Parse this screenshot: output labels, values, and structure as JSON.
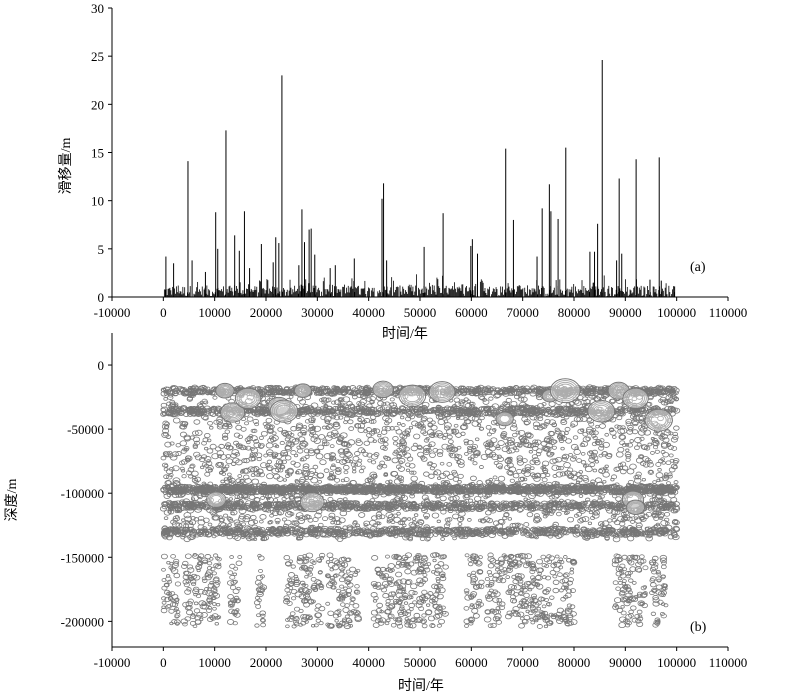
{
  "chart_data": [
    {
      "type": "bar",
      "panel_label": "(a)",
      "xlabel": "时间/年",
      "ylabel": "滑移量/m",
      "xlim": [
        -10000,
        110000
      ],
      "ylim": [
        0,
        30
      ],
      "xticks": [
        "-10000",
        "0",
        "10000",
        "20000",
        "30000",
        "40000",
        "50000",
        "60000",
        "70000",
        "80000",
        "90000",
        "100000",
        "110000"
      ],
      "yticks": [
        "0",
        "5",
        "10",
        "15",
        "20",
        "25",
        "30"
      ],
      "color": "#000000",
      "baseline_max": 1.2,
      "events": [
        {
          "x": 500,
          "y": 4.2
        },
        {
          "x": 2000,
          "y": 3.5
        },
        {
          "x": 4800,
          "y": 14.1
        },
        {
          "x": 5600,
          "y": 3.8
        },
        {
          "x": 8200,
          "y": 2.6
        },
        {
          "x": 10200,
          "y": 8.8
        },
        {
          "x": 10600,
          "y": 5.0
        },
        {
          "x": 12200,
          "y": 17.3
        },
        {
          "x": 13900,
          "y": 6.4
        },
        {
          "x": 14800,
          "y": 4.8
        },
        {
          "x": 15800,
          "y": 8.9
        },
        {
          "x": 16800,
          "y": 3.0
        },
        {
          "x": 19100,
          "y": 5.5
        },
        {
          "x": 21400,
          "y": 3.6
        },
        {
          "x": 21900,
          "y": 6.2
        },
        {
          "x": 22500,
          "y": 5.6
        },
        {
          "x": 23100,
          "y": 23.0
        },
        {
          "x": 26400,
          "y": 3.3
        },
        {
          "x": 27000,
          "y": 9.1
        },
        {
          "x": 27500,
          "y": 5.7
        },
        {
          "x": 28400,
          "y": 7.0
        },
        {
          "x": 28800,
          "y": 7.1
        },
        {
          "x": 29500,
          "y": 4.4
        },
        {
          "x": 32500,
          "y": 3.0
        },
        {
          "x": 33500,
          "y": 3.3
        },
        {
          "x": 37200,
          "y": 4.0
        },
        {
          "x": 42600,
          "y": 10.2
        },
        {
          "x": 42900,
          "y": 11.8
        },
        {
          "x": 43500,
          "y": 3.8
        },
        {
          "x": 50800,
          "y": 5.2
        },
        {
          "x": 54500,
          "y": 8.7
        },
        {
          "x": 59900,
          "y": 5.3
        },
        {
          "x": 60200,
          "y": 6.0
        },
        {
          "x": 61200,
          "y": 4.5
        },
        {
          "x": 66700,
          "y": 15.4
        },
        {
          "x": 68200,
          "y": 8.0
        },
        {
          "x": 72800,
          "y": 4.2
        },
        {
          "x": 73800,
          "y": 9.2
        },
        {
          "x": 75200,
          "y": 11.7
        },
        {
          "x": 75500,
          "y": 8.9
        },
        {
          "x": 76900,
          "y": 8.1
        },
        {
          "x": 78400,
          "y": 15.5
        },
        {
          "x": 83100,
          "y": 4.7
        },
        {
          "x": 84000,
          "y": 4.7
        },
        {
          "x": 84600,
          "y": 7.6
        },
        {
          "x": 85500,
          "y": 24.6
        },
        {
          "x": 88300,
          "y": 3.8
        },
        {
          "x": 88800,
          "y": 12.3
        },
        {
          "x": 89300,
          "y": 4.5
        },
        {
          "x": 92100,
          "y": 14.3
        },
        {
          "x": 94800,
          "y": 1.8
        },
        {
          "x": 96600,
          "y": 14.5
        },
        {
          "x": 97000,
          "y": 1.7
        },
        {
          "x": 99600,
          "y": 1.1
        }
      ]
    },
    {
      "type": "scatter",
      "panel_label": "(b)",
      "xlabel": "时间/年",
      "ylabel": "深度/m",
      "xlim": [
        -10000,
        110000
      ],
      "ylim": [
        -220000,
        25000
      ],
      "xticks": [
        "-10000",
        "0",
        "10000",
        "20000",
        "30000",
        "40000",
        "50000",
        "60000",
        "70000",
        "80000",
        "90000",
        "100000",
        "110000"
      ],
      "yticks": [
        "0",
        "-50000",
        "-100000",
        "-150000",
        "-200000"
      ],
      "marker": "open-ellipse",
      "color": "#777777",
      "bands": [
        {
          "depth": -20000,
          "density": "high"
        },
        {
          "depth": -36000,
          "density": "high"
        },
        {
          "depth": -97000,
          "density": "very high"
        },
        {
          "depth": -110000,
          "density": "high"
        },
        {
          "depth": -130000,
          "density": "high"
        }
      ],
      "large_events": [
        {
          "x": 12000,
          "y": -20000
        },
        {
          "x": 13500,
          "y": -37000
        },
        {
          "x": 16500,
          "y": -26000
        },
        {
          "x": 22500,
          "y": -32000
        },
        {
          "x": 23500,
          "y": -36000
        },
        {
          "x": 27200,
          "y": -20000
        },
        {
          "x": 42800,
          "y": -19000
        },
        {
          "x": 48500,
          "y": -24000
        },
        {
          "x": 54300,
          "y": -21000
        },
        {
          "x": 66500,
          "y": -42000
        },
        {
          "x": 75300,
          "y": -24000
        },
        {
          "x": 78300,
          "y": -20000
        },
        {
          "x": 85300,
          "y": -36000
        },
        {
          "x": 88700,
          "y": -20000
        },
        {
          "x": 92000,
          "y": -26000
        },
        {
          "x": 96500,
          "y": -43000
        },
        {
          "x": 10300,
          "y": -105000
        },
        {
          "x": 29000,
          "y": -107000
        },
        {
          "x": 91500,
          "y": -105000
        },
        {
          "x": 92000,
          "y": -111000
        }
      ]
    }
  ]
}
